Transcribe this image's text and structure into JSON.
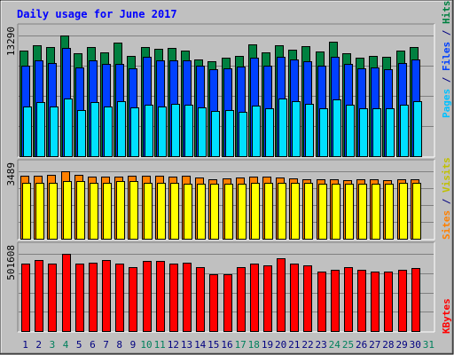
{
  "chart_data": {
    "title": "Daily usage for June 2017",
    "type": "bar",
    "days": [
      1,
      2,
      3,
      4,
      5,
      6,
      7,
      8,
      9,
      10,
      11,
      12,
      13,
      14,
      15,
      16,
      17,
      18,
      19,
      20,
      21,
      22,
      23,
      24,
      25,
      26,
      27,
      28,
      29,
      30,
      31
    ],
    "weekend_days": [
      3,
      4,
      10,
      11,
      17,
      18,
      24,
      25,
      31
    ],
    "panels": [
      {
        "id": "hits",
        "max_label": "13290",
        "ylim": [
          0,
          13290
        ],
        "series_labels": [
          "Pages",
          "Files",
          "Hits"
        ],
        "series": [
          {
            "name": "Hits",
            "color": "#008040",
            "values": [
              11600,
              12200,
              12000,
              13290,
              11300,
              12000,
              11400,
              12500,
              11000,
              12000,
              11800,
              11900,
              11600,
              10700,
              10500,
              10800,
              11000,
              12300,
              11400,
              12200,
              11700,
              12100,
              11500,
              12600,
              11300,
              10800,
              11000,
              10900,
              11600,
              12000,
              null
            ]
          },
          {
            "name": "Files",
            "color": "#0040ff",
            "values": [
              10000,
              10600,
              10300,
              11900,
              9800,
              10600,
              10200,
              10200,
              9700,
              10900,
              10600,
              10600,
              10600,
              10000,
              9600,
              9700,
              9900,
              10800,
              10000,
              10900,
              10700,
              10500,
              10000,
              10900,
              10200,
              9700,
              9800,
              9600,
              10300,
              10700,
              null
            ]
          },
          {
            "name": "Pages",
            "color": "#00e0ff",
            "values": [
              5500,
              6000,
              5500,
              6400,
              5100,
              6000,
              5500,
              6100,
              5400,
              5700,
              5500,
              5800,
              5700,
              5400,
              5000,
              5100,
              4900,
              5600,
              5300,
              6400,
              6100,
              5800,
              5300,
              6300,
              5700,
              5300,
              5300,
              5300,
              5700,
              6100,
              null
            ]
          }
        ]
      },
      {
        "id": "visits",
        "max_label": "3489",
        "ylim": [
          0,
          3489
        ],
        "series_labels": [
          "Sites",
          "Visits"
        ],
        "series": [
          {
            "name": "Visits",
            "color": "#ff8000",
            "values": [
              3279,
              3279,
              3326,
              3489,
              3326,
              3232,
              3232,
              3232,
              3279,
              3279,
              3279,
              3232,
              3279,
              3186,
              3060,
              3141,
              3186,
              3232,
              3232,
              3186,
              3108,
              3060,
              3076,
              3092,
              3026,
              3092,
              3076,
              3043,
              3060,
              3076,
              null
            ]
          },
          {
            "name": "Sites",
            "color": "#ffff00",
            "values": [
              2887,
              2887,
              2887,
              2962,
              2962,
              2887,
              2887,
              2962,
              2962,
              2887,
              2887,
              2887,
              2824,
              2824,
              2824,
              2824,
              2824,
              2887,
              2887,
              2887,
              2887,
              2887,
              2824,
              2824,
              2824,
              2824,
              2824,
              2824,
              2887,
              2887,
              null
            ]
          }
        ]
      },
      {
        "id": "kbytes",
        "max_label": "501608",
        "ylim": [
          0,
          501608
        ],
        "series_labels": [
          "KBytes"
        ],
        "series": [
          {
            "name": "KBytes",
            "color": "#ff0000",
            "values": [
              436000,
              463000,
              436000,
              501608,
              436000,
              445000,
              463000,
              436000,
              417000,
              453000,
              453000,
              436000,
              445000,
              417000,
              371000,
              371000,
              417000,
              436000,
              426000,
              472000,
              436000,
              426000,
              389000,
              399000,
              417000,
              399000,
              389000,
              389000,
              399000,
              408000,
              null
            ]
          }
        ]
      }
    ],
    "colors": {
      "background": "#c0c0c0",
      "title": "#0000ff",
      "weekday_label": "#000080",
      "weekend_label": "#00805c",
      "label_hits": "#008040",
      "label_files": "#0040ff",
      "label_pages": "#00c0ff",
      "label_sites": "#ff8000",
      "label_visits": "#c0c000",
      "label_kbytes": "#ff0000"
    }
  }
}
